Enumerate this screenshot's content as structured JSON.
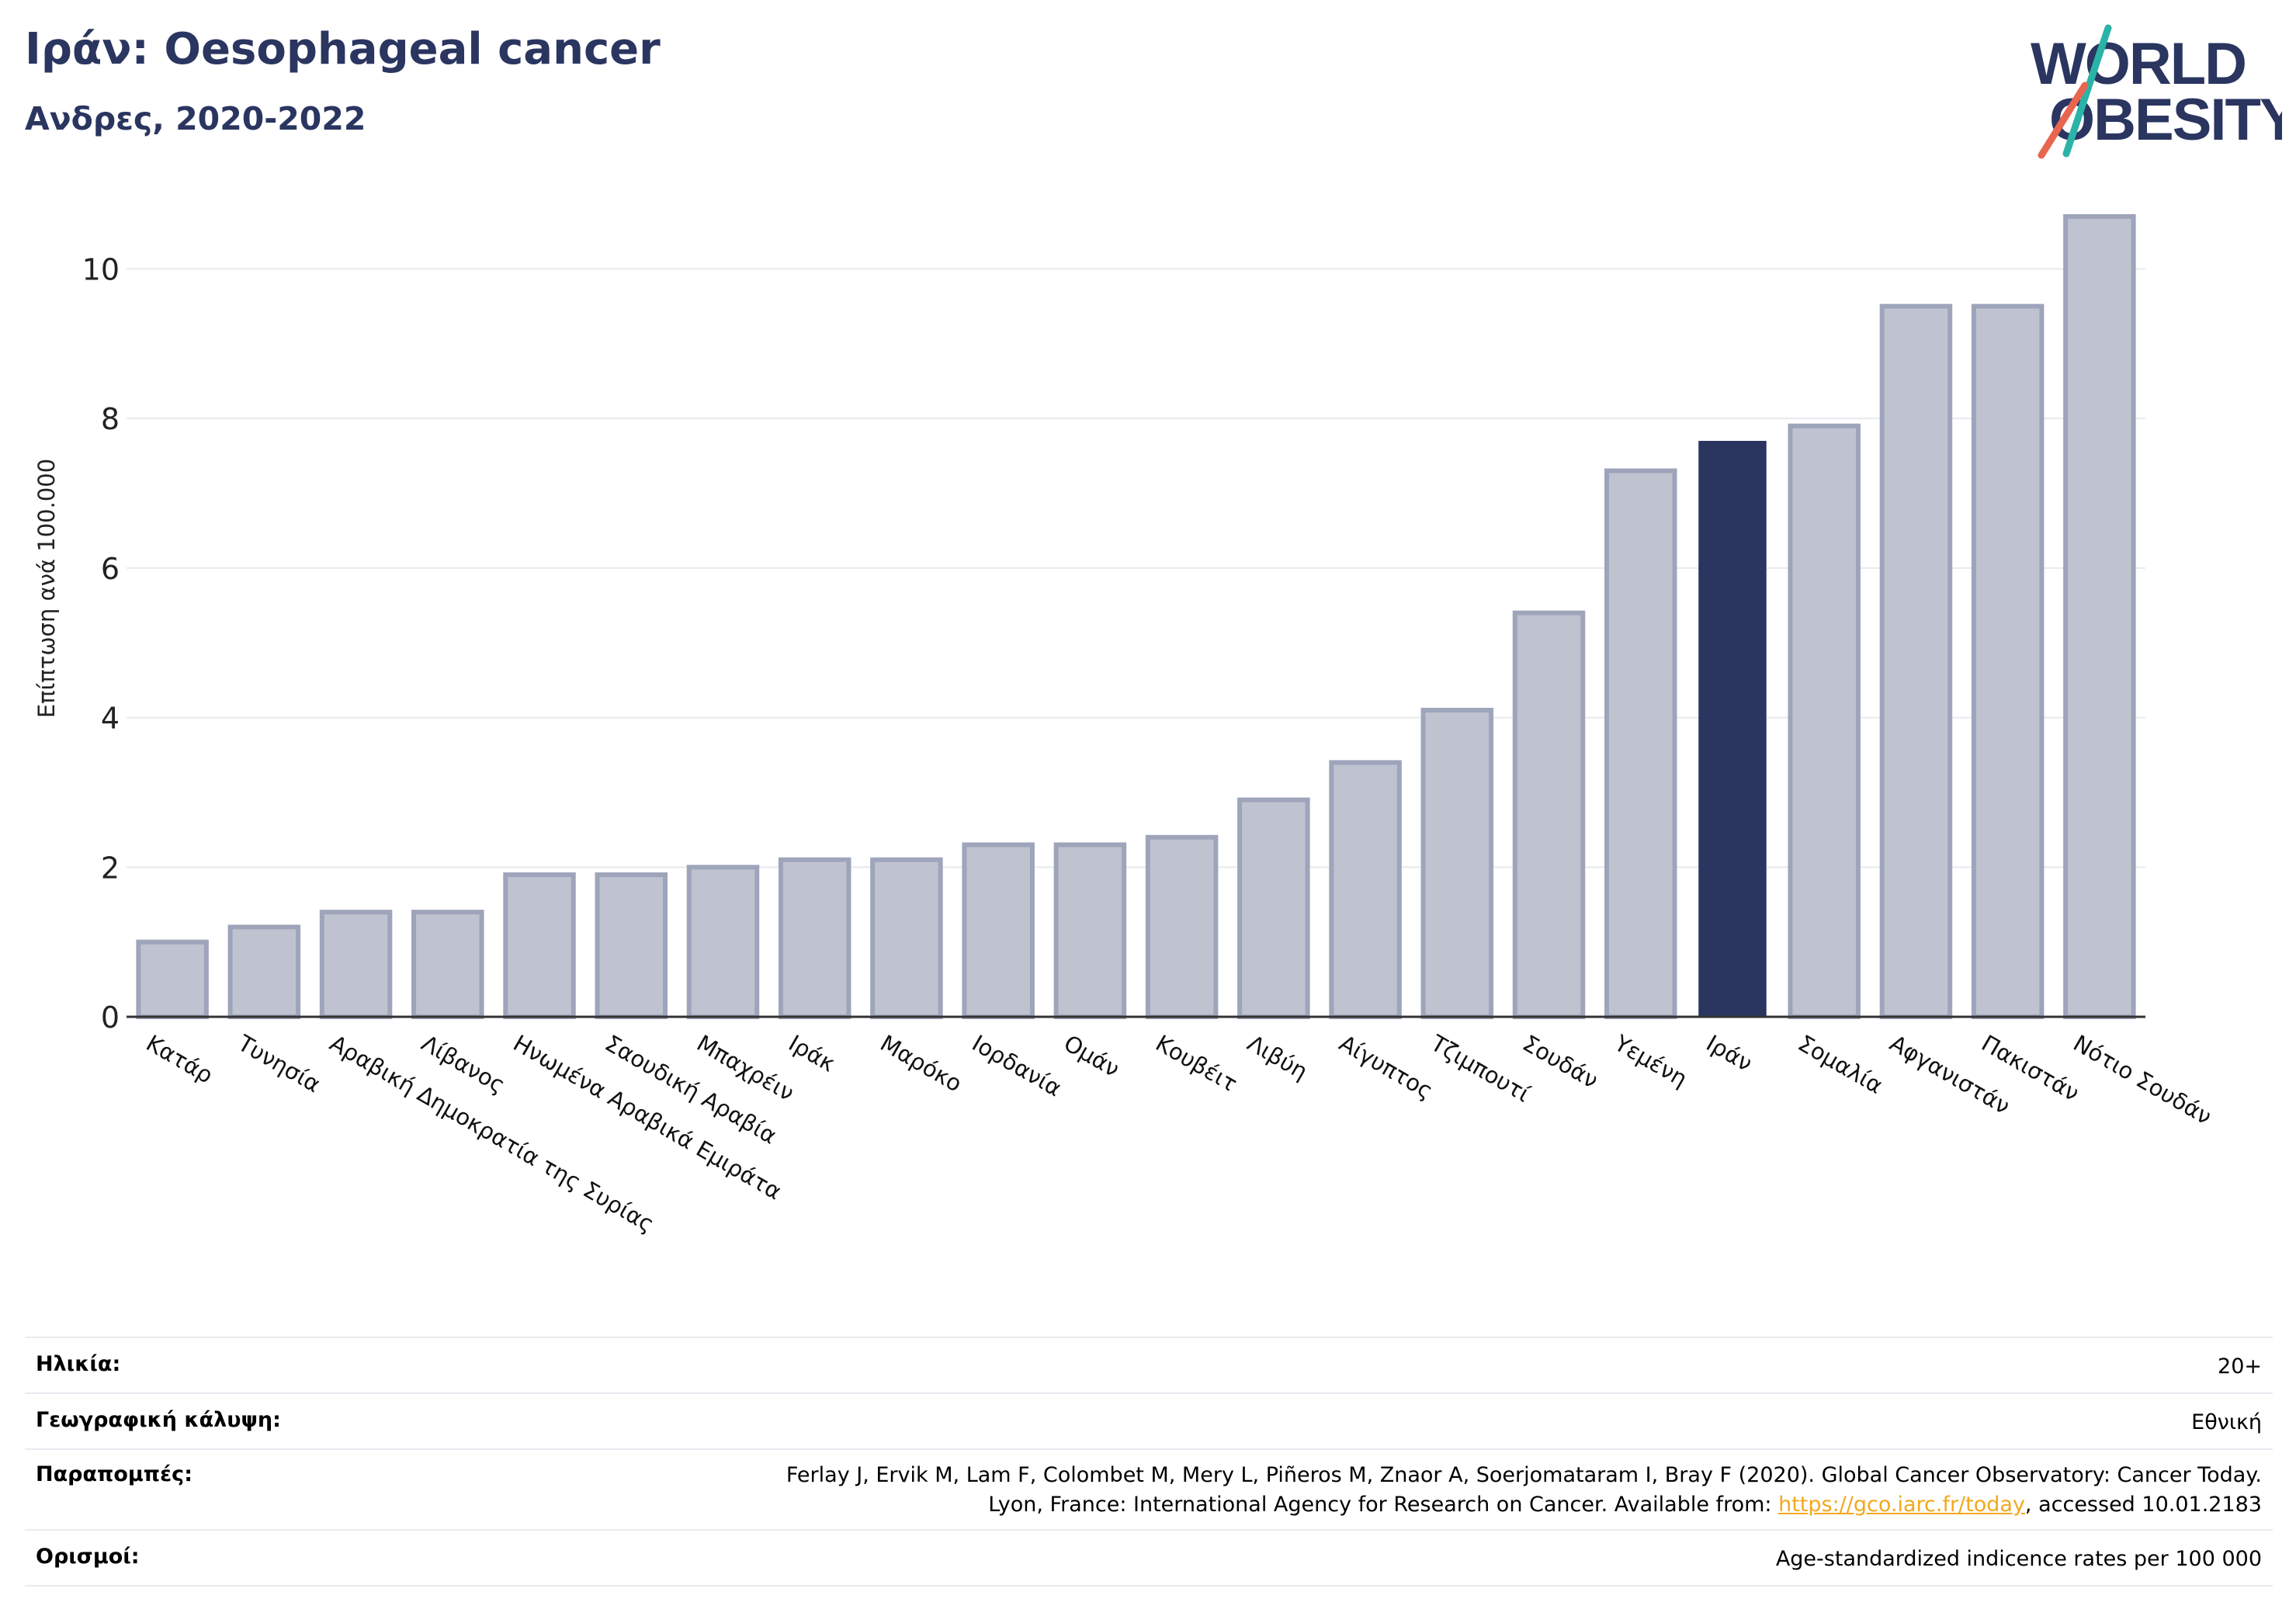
{
  "header": {
    "title": "Ιράν: Oesophageal cancer",
    "subtitle": "Ανδρες, 2020-2022"
  },
  "logo": {
    "line1": "WORLD",
    "line2": "OBESITY",
    "colors": {
      "text": "#2a3560",
      "slash_top": "#2bb3a8",
      "slash_bottom": "#e8664f"
    }
  },
  "chart_data": {
    "type": "bar",
    "ylabel": "Επίπτωση ανά 100.000",
    "ylim": [
      0,
      11
    ],
    "yticks": [
      0,
      2,
      4,
      6,
      8,
      10
    ],
    "grid": true,
    "highlight": "Ιράν",
    "colors": {
      "bar": "#bfc3d0",
      "bar_edge": "#9ea4ba",
      "highlight": "#2a3560",
      "grid": "#e8e9ee"
    },
    "categories": [
      "Κατάρ",
      "Τυνησία",
      "Αραβική Δημοκρατία της Συρίας",
      "Λίβανος",
      "Ηνωμένα Αραβικά Εμιράτα",
      "Σαουδική Αραβία",
      "Μπαχρέιν",
      "Ιράκ",
      "Μαρόκο",
      "Ιορδανία",
      "Ομάν",
      "Κουβέιτ",
      "Λιβύη",
      "Αίγυπτος",
      "Τζιμπουτί",
      "Σουδάν",
      "Υεμένη",
      "Ιράν",
      "Σομαλία",
      "Αφγανιστάν",
      "Πακιστάν",
      "Νότιο Σουδάν"
    ],
    "values": [
      1.0,
      1.2,
      1.4,
      1.4,
      1.9,
      1.9,
      2.0,
      2.1,
      2.1,
      2.3,
      2.3,
      2.4,
      2.9,
      3.4,
      4.1,
      5.4,
      7.3,
      7.7,
      7.9,
      9.5,
      9.5,
      10.7
    ]
  },
  "info": {
    "age_label": "Ηλικία:",
    "age_value": "20+",
    "geo_label": "Γεωγραφική κάλυψη:",
    "geo_value": "Εθνική",
    "ref_label": "Παραπομπές:",
    "ref_line1": "Ferlay J, Ervik M, Lam F, Colombet M, Mery L, Piñeros M, Znaor A, Soerjomataram I, Bray F (2020). Global Cancer Observatory: Cancer Today.",
    "ref_line2_pre": "Lyon, France: International Agency for Research on Cancer. Available from: ",
    "ref_link": "https://gco.iarc.fr/today",
    "ref_line2_post": ", accessed 10.01.2183",
    "def_label": "Ορισμοί:",
    "def_value": "Age-standardized indicence rates per 100 000"
  }
}
